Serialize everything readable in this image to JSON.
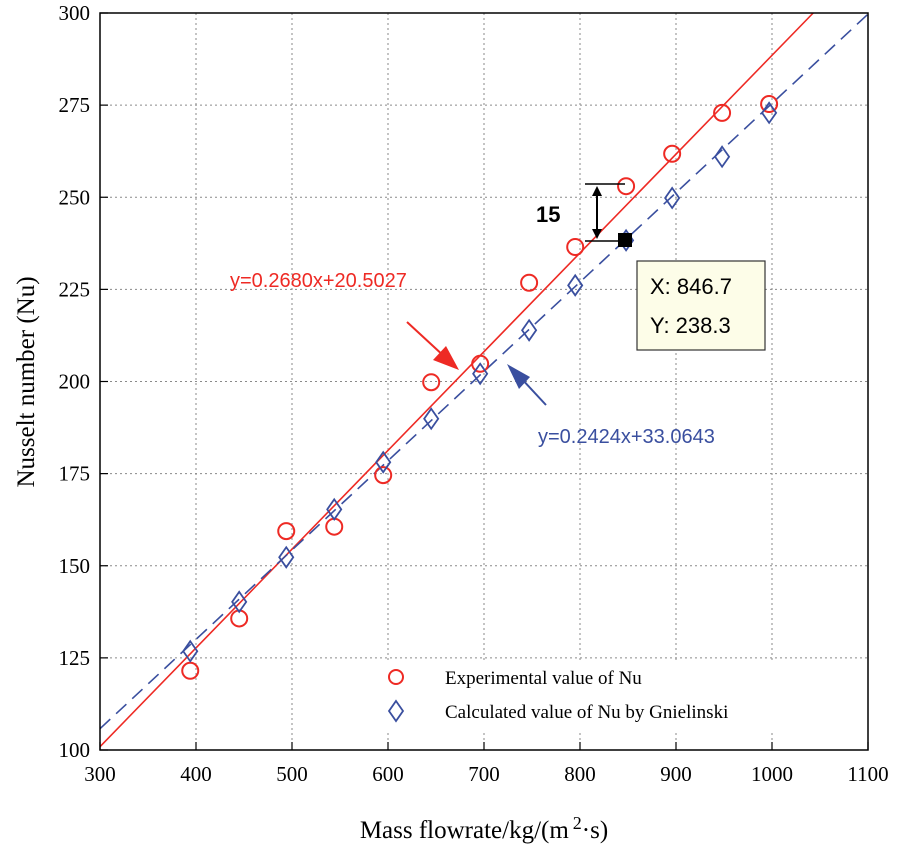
{
  "chart_data": {
    "type": "scatter",
    "title": "",
    "xlabel_main": "Mass flowrate/kg/(m",
    "xlabel_sup": "2",
    "xlabel_tail": "·s)",
    "ylabel": "Nusselt number (Nu)",
    "xlim": [
      300,
      1100
    ],
    "ylim": [
      100,
      300
    ],
    "x_ticks": [
      300,
      400,
      500,
      600,
      700,
      800,
      900,
      1000,
      1100
    ],
    "y_ticks": [
      100,
      125,
      150,
      175,
      200,
      225,
      250,
      275,
      300
    ],
    "grid": true,
    "legend_position": "bottom-right",
    "series": [
      {
        "name": "Experimental value of Nu",
        "marker": "circle",
        "color": "#ee2a24",
        "x": [
          394,
          445,
          494,
          544,
          595,
          645,
          696,
          747,
          795,
          848,
          896,
          948,
          997
        ],
        "y": [
          121.5,
          135.7,
          159.4,
          160.6,
          174.6,
          199.8,
          204.8,
          226.8,
          236.5,
          253,
          261.8,
          272.9,
          275.3
        ]
      },
      {
        "name": "Calculated value of  Nu by Gnielinski",
        "marker": "diamond",
        "color": "#3a4f9f",
        "x": [
          394,
          445,
          494,
          544,
          595,
          645,
          696,
          747,
          795,
          848,
          896,
          948,
          997
        ],
        "y": [
          126.8,
          140.2,
          152.3,
          165.3,
          178.1,
          189.9,
          202.1,
          213.9,
          226.1,
          238.3,
          249.8,
          261,
          272.9
        ]
      }
    ],
    "fits": [
      {
        "label": "y=0.2680x+20.5027",
        "slope": 0.268,
        "intercept": 20.5027,
        "color": "#ee2a24",
        "style": "solid"
      },
      {
        "label": "y=0.2424x+33.0643",
        "slope": 0.2424,
        "intercept": 33.0643,
        "color": "#3a4f9f",
        "style": "dashed"
      }
    ],
    "datatip": {
      "x_text": "X: 846.7",
      "y_text": "Y: 238.3",
      "x": 846.7,
      "y": 238.3
    },
    "difference_annotation": {
      "label": "15",
      "x": 813,
      "y_top": 253.5,
      "y_bottom": 238.5
    }
  }
}
